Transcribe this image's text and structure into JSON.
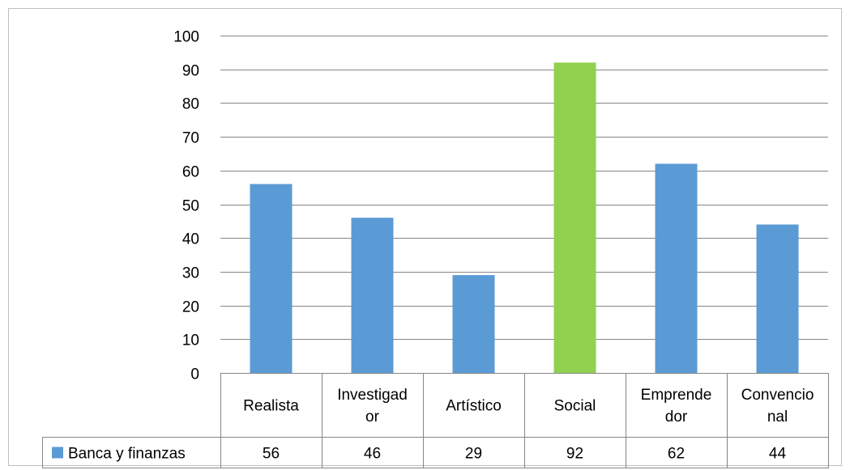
{
  "chart_data": {
    "type": "bar",
    "categories": [
      [
        "Realista"
      ],
      [
        "Investigad",
        "or"
      ],
      [
        "Artístico"
      ],
      [
        "Social"
      ],
      [
        "Emprende",
        "dor"
      ],
      [
        "Convencio",
        "nal"
      ]
    ],
    "series": [
      {
        "name": "Banca y finanzas",
        "values": [
          56,
          46,
          29,
          92,
          62,
          44
        ],
        "color": "#5b9bd5"
      }
    ],
    "highlight": {
      "index": 3,
      "color": "#92d050"
    },
    "ylim": [
      0,
      100
    ],
    "yticks": [
      "0",
      "10",
      "20",
      "30",
      "40",
      "50",
      "60",
      "70",
      "80",
      "90",
      "100"
    ],
    "grid": true,
    "legend": "data-table-left"
  }
}
